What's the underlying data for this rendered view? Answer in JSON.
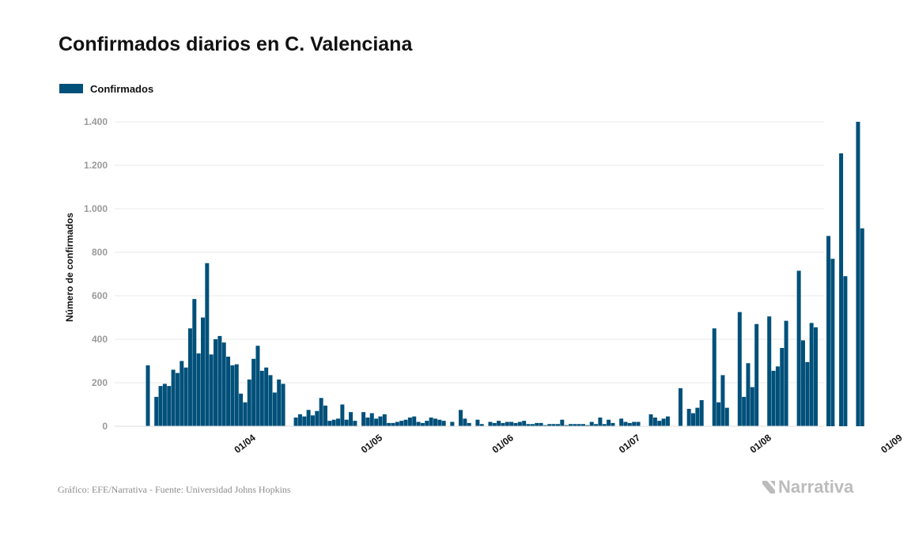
{
  "chart_data": {
    "type": "bar",
    "title": "Confirmados diarios en C. Valenciana",
    "legend": "Confirmados",
    "legend_placement": "top-left",
    "ylabel": "Número de confirmados",
    "xlabel": "",
    "ylim": [
      0,
      1400
    ],
    "yticks": [
      0,
      200,
      400,
      600,
      800,
      1000,
      1200,
      1400
    ],
    "ytick_labels": [
      "0",
      "200",
      "400",
      "600",
      "800",
      "1.000",
      "1.200",
      "1.400"
    ],
    "grid": true,
    "color": "#00507a",
    "x_start": "2020-03-09",
    "x_end": "2020-09-03",
    "xtick_dates": [
      "2020-04-01",
      "2020-05-01",
      "2020-06-01",
      "2020-07-01",
      "2020-08-01",
      "2020-09-01"
    ],
    "xtick_labels": [
      "01/04",
      "01/05",
      "01/06",
      "01/07",
      "01/08",
      "01/09"
    ],
    "series": [
      {
        "name": "Confirmados",
        "values": [
          [
            "2020-03-09",
            280
          ],
          [
            "2020-03-11",
            135
          ],
          [
            "2020-03-12",
            185
          ],
          [
            "2020-03-13",
            195
          ],
          [
            "2020-03-14",
            185
          ],
          [
            "2020-03-15",
            260
          ],
          [
            "2020-03-16",
            245
          ],
          [
            "2020-03-17",
            300
          ],
          [
            "2020-03-18",
            270
          ],
          [
            "2020-03-19",
            450
          ],
          [
            "2020-03-20",
            585
          ],
          [
            "2020-03-21",
            335
          ],
          [
            "2020-03-22",
            500
          ],
          [
            "2020-03-23",
            750
          ],
          [
            "2020-03-24",
            330
          ],
          [
            "2020-03-25",
            400
          ],
          [
            "2020-03-26",
            415
          ],
          [
            "2020-03-27",
            385
          ],
          [
            "2020-03-28",
            320
          ],
          [
            "2020-03-29",
            280
          ],
          [
            "2020-03-30",
            285
          ],
          [
            "2020-03-31",
            150
          ],
          [
            "2020-04-01",
            110
          ],
          [
            "2020-04-02",
            215
          ],
          [
            "2020-04-03",
            310
          ],
          [
            "2020-04-04",
            370
          ],
          [
            "2020-04-05",
            255
          ],
          [
            "2020-04-06",
            270
          ],
          [
            "2020-04-07",
            235
          ],
          [
            "2020-04-08",
            155
          ],
          [
            "2020-04-09",
            215
          ],
          [
            "2020-04-10",
            195
          ],
          [
            "2020-04-13",
            40
          ],
          [
            "2020-04-14",
            55
          ],
          [
            "2020-04-15",
            45
          ],
          [
            "2020-04-16",
            75
          ],
          [
            "2020-04-17",
            50
          ],
          [
            "2020-04-18",
            70
          ],
          [
            "2020-04-19",
            130
          ],
          [
            "2020-04-20",
            95
          ],
          [
            "2020-04-21",
            25
          ],
          [
            "2020-04-22",
            30
          ],
          [
            "2020-04-23",
            35
          ],
          [
            "2020-04-24",
            100
          ],
          [
            "2020-04-25",
            30
          ],
          [
            "2020-04-26",
            65
          ],
          [
            "2020-04-27",
            25
          ],
          [
            "2020-04-29",
            65
          ],
          [
            "2020-04-30",
            40
          ],
          [
            "2020-05-01",
            60
          ],
          [
            "2020-05-02",
            35
          ],
          [
            "2020-05-03",
            45
          ],
          [
            "2020-05-04",
            55
          ],
          [
            "2020-05-05",
            15
          ],
          [
            "2020-05-06",
            15
          ],
          [
            "2020-05-07",
            20
          ],
          [
            "2020-05-08",
            25
          ],
          [
            "2020-05-09",
            30
          ],
          [
            "2020-05-10",
            40
          ],
          [
            "2020-05-11",
            45
          ],
          [
            "2020-05-12",
            20
          ],
          [
            "2020-05-13",
            15
          ],
          [
            "2020-05-14",
            25
          ],
          [
            "2020-05-15",
            40
          ],
          [
            "2020-05-16",
            35
          ],
          [
            "2020-05-17",
            30
          ],
          [
            "2020-05-18",
            25
          ],
          [
            "2020-05-20",
            20
          ],
          [
            "2020-05-22",
            75
          ],
          [
            "2020-05-23",
            35
          ],
          [
            "2020-05-24",
            15
          ],
          [
            "2020-05-26",
            30
          ],
          [
            "2020-05-27",
            10
          ],
          [
            "2020-05-29",
            20
          ],
          [
            "2020-05-30",
            15
          ],
          [
            "2020-05-31",
            25
          ],
          [
            "2020-06-01",
            15
          ],
          [
            "2020-06-02",
            20
          ],
          [
            "2020-06-03",
            20
          ],
          [
            "2020-06-04",
            15
          ],
          [
            "2020-06-05",
            20
          ],
          [
            "2020-06-06",
            25
          ],
          [
            "2020-06-07",
            10
          ],
          [
            "2020-06-08",
            10
          ],
          [
            "2020-06-09",
            15
          ],
          [
            "2020-06-10",
            15
          ],
          [
            "2020-06-11",
            5
          ],
          [
            "2020-06-12",
            10
          ],
          [
            "2020-06-13",
            10
          ],
          [
            "2020-06-14",
            10
          ],
          [
            "2020-06-15",
            30
          ],
          [
            "2020-06-16",
            5
          ],
          [
            "2020-06-17",
            10
          ],
          [
            "2020-06-18",
            10
          ],
          [
            "2020-06-19",
            10
          ],
          [
            "2020-06-20",
            10
          ],
          [
            "2020-06-21",
            5
          ],
          [
            "2020-06-22",
            20
          ],
          [
            "2020-06-23",
            10
          ],
          [
            "2020-06-24",
            40
          ],
          [
            "2020-06-25",
            10
          ],
          [
            "2020-06-26",
            30
          ],
          [
            "2020-06-27",
            15
          ],
          [
            "2020-06-29",
            35
          ],
          [
            "2020-06-30",
            20
          ],
          [
            "2020-07-01",
            15
          ],
          [
            "2020-07-02",
            20
          ],
          [
            "2020-07-03",
            20
          ],
          [
            "2020-07-06",
            55
          ],
          [
            "2020-07-07",
            40
          ],
          [
            "2020-07-08",
            25
          ],
          [
            "2020-07-09",
            35
          ],
          [
            "2020-07-10",
            45
          ],
          [
            "2020-07-13",
            175
          ],
          [
            "2020-07-15",
            80
          ],
          [
            "2020-07-16",
            60
          ],
          [
            "2020-07-17",
            85
          ],
          [
            "2020-07-18",
            120
          ],
          [
            "2020-07-21",
            450
          ],
          [
            "2020-07-22",
            110
          ],
          [
            "2020-07-23",
            235
          ],
          [
            "2020-07-24",
            85
          ],
          [
            "2020-07-27",
            525
          ],
          [
            "2020-07-28",
            135
          ],
          [
            "2020-07-29",
            290
          ],
          [
            "2020-07-30",
            180
          ],
          [
            "2020-07-31",
            470
          ],
          [
            "2020-08-03",
            505
          ],
          [
            "2020-08-04",
            255
          ],
          [
            "2020-08-05",
            275
          ],
          [
            "2020-08-06",
            360
          ],
          [
            "2020-08-07",
            485
          ],
          [
            "2020-08-10",
            715
          ],
          [
            "2020-08-11",
            395
          ],
          [
            "2020-08-12",
            295
          ],
          [
            "2020-08-13",
            475
          ],
          [
            "2020-08-14",
            455
          ],
          [
            "2020-08-17",
            875
          ],
          [
            "2020-08-18",
            770
          ],
          [
            "2020-08-20",
            1255
          ],
          [
            "2020-08-21",
            690
          ],
          [
            "2020-08-24",
            1400
          ],
          [
            "2020-08-25",
            910
          ]
        ]
      }
    ]
  },
  "footer": {
    "source": "Gráfico: EFE/Narrativa - Fuente: Universidad Johns Hopkins",
    "brand": "Narrativa"
  }
}
